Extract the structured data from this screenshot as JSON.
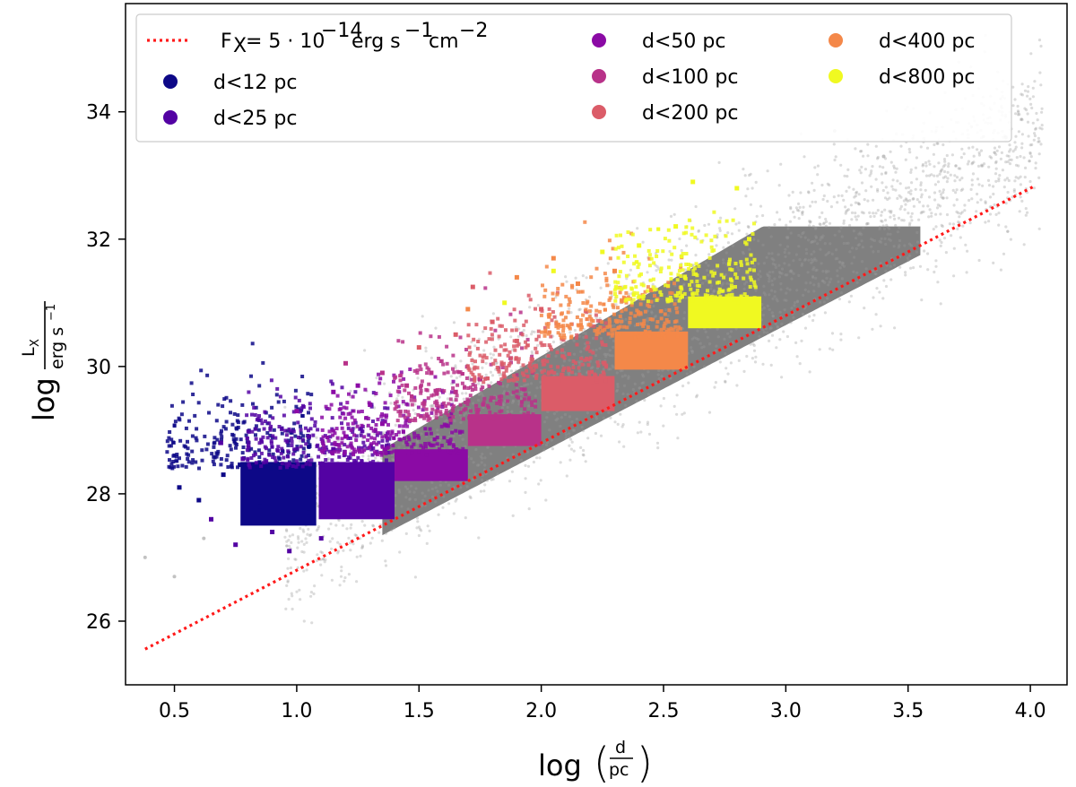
{
  "chart_data": {
    "type": "scatter",
    "title": "",
    "xlabel": "log (d/pc)",
    "ylabel": "log Lx / erg s^-1",
    "xlim": [
      0.3,
      4.15
    ],
    "ylim": [
      25.0,
      35.7
    ],
    "xticks": [
      0.5,
      1.0,
      1.5,
      2.0,
      2.5,
      3.0,
      3.5,
      4.0
    ],
    "xtick_labels": [
      "0.5",
      "1.0",
      "1.5",
      "2.0",
      "2.5",
      "3.0",
      "3.5",
      "4.0"
    ],
    "yticks": [
      26,
      28,
      30,
      32,
      34
    ],
    "ytick_labels": [
      "26",
      "28",
      "30",
      "32",
      "34"
    ],
    "grid": false,
    "legend_position": "top",
    "background_color": "#808080",
    "flux_limit_line": {
      "label": "FX = 5 · 10^-14 erg s^-1 cm^-2",
      "x": [
        0.38,
        4.02
      ],
      "y": [
        25.56,
        32.84
      ],
      "color": "#ff1a1a",
      "style": "dotted"
    },
    "series": [
      {
        "name": "d<12 pc",
        "color": "#0d0887",
        "dmax_log": 1.08,
        "lx_min": 27.5,
        "lx_max": 28.5,
        "scatter": [
          [
            0.52,
            28.1
          ],
          [
            0.6,
            27.9
          ],
          [
            0.7,
            28.3
          ],
          [
            0.85,
            27.8
          ],
          [
            0.98,
            28.4
          ],
          [
            1.05,
            27.7
          ]
        ]
      },
      {
        "name": "d<25 pc",
        "color": "#5302a3",
        "dmax_log": 1.4,
        "lx_min": 27.6,
        "lx_max": 28.5,
        "scatter": [
          [
            0.69,
            28.8
          ],
          [
            0.78,
            28.55
          ],
          [
            0.65,
            27.6
          ],
          [
            0.75,
            27.2
          ],
          [
            0.9,
            27.4
          ],
          [
            0.97,
            27.1
          ],
          [
            1.05,
            28.9
          ],
          [
            1.15,
            28.7
          ],
          [
            1.1,
            27.3
          ]
        ]
      },
      {
        "name": "d<50 pc",
        "color": "#8b0aa5",
        "dmax_log": 1.7,
        "lx_min": 28.2,
        "lx_max": 28.7,
        "scatter": [
          [
            1.0,
            29.3
          ],
          [
            1.15,
            29.6
          ],
          [
            1.25,
            29.7
          ],
          [
            1.35,
            29.1
          ],
          [
            1.2,
            28.9
          ],
          [
            1.3,
            29.4
          ]
        ]
      },
      {
        "name": "d<100 pc",
        "color": "#b83289",
        "dmax_log": 2.0,
        "lx_min": 28.75,
        "lx_max": 29.25,
        "scatter": [
          [
            1.2,
            30.05
          ],
          [
            1.35,
            29.9
          ],
          [
            1.45,
            29.7
          ],
          [
            1.55,
            29.9
          ],
          [
            1.65,
            29.6
          ],
          [
            1.75,
            29.8
          ]
        ]
      },
      {
        "name": "d<200 pc",
        "color": "#db5c68",
        "dmax_log": 2.3,
        "lx_min": 29.3,
        "lx_max": 29.85,
        "scatter": [
          [
            1.5,
            30.3
          ],
          [
            1.65,
            30.5
          ],
          [
            1.72,
            31.25
          ],
          [
            1.8,
            30.7
          ],
          [
            1.9,
            30.4
          ],
          [
            2.0,
            30.9
          ]
        ]
      },
      {
        "name": "d<400 pc",
        "color": "#f48849",
        "dmax_log": 2.6,
        "lx_min": 29.95,
        "lx_max": 30.55,
        "scatter": [
          [
            1.7,
            30.9
          ],
          [
            1.9,
            31.4
          ],
          [
            2.05,
            31.7
          ],
          [
            2.15,
            31.3
          ],
          [
            2.3,
            31.5
          ],
          [
            2.45,
            31.2
          ]
        ]
      },
      {
        "name": "d<800 pc",
        "color": "#f0f921",
        "dmax_log": 2.9,
        "lx_min": 30.6,
        "lx_max": 31.1,
        "scatter": [
          [
            1.85,
            31.0
          ],
          [
            2.05,
            31.5
          ],
          [
            2.25,
            31.8
          ],
          [
            2.4,
            31.9
          ],
          [
            2.55,
            32.2
          ],
          [
            2.62,
            32.9
          ],
          [
            2.8,
            32.8
          ],
          [
            2.85,
            32.0
          ]
        ]
      }
    ]
  }
}
